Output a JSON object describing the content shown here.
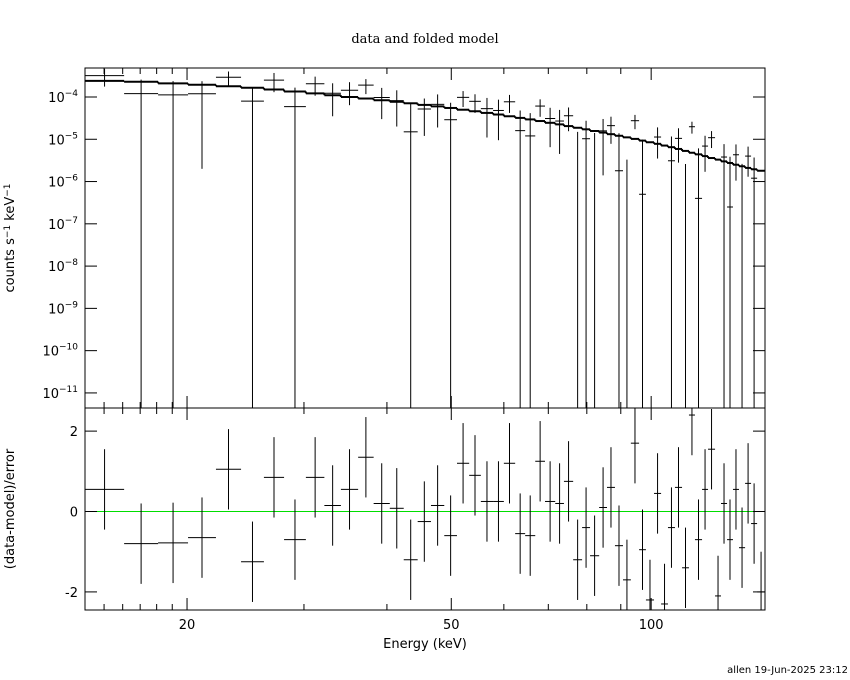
{
  "chart_data": [
    {
      "type": "spectrum",
      "title": "data and folded model",
      "ylabel": [
        "counts s",
        "−1",
        " keV",
        "−1"
      ],
      "log": true,
      "xlim": [
        14.04,
        148.4
      ],
      "ylim": [
        4.4e-12,
        0.000485
      ],
      "yticks": [
        {
          "value": 0.0001,
          "label": "10",
          "exponent": "−4"
        },
        {
          "value": 1e-05,
          "label": "10",
          "exponent": "−5"
        },
        {
          "value": 1e-06,
          "label": "10",
          "exponent": "−6"
        },
        {
          "value": 1e-07,
          "label": "10",
          "exponent": "−7"
        },
        {
          "value": 1e-08,
          "label": "10",
          "exponent": "−8"
        },
        {
          "value": 1e-09,
          "label": "10",
          "exponent": "−9"
        },
        {
          "value": 1e-10,
          "label": "10",
          "exponent": "−10"
        },
        {
          "value": 1e-11,
          "label": "10",
          "exponent": "−11"
        }
      ],
      "bins": [
        14.04,
        16.08,
        18.09,
        20.07,
        22.11,
        24.12,
        26.11,
        28.0,
        30.2,
        32.2,
        34.1,
        36.2,
        38.2,
        40.4,
        42.4,
        44.5,
        46.6,
        48.8,
        51.0,
        53.2,
        55.4,
        57.8,
        60.0,
        62.4,
        64.6,
        66.9,
        69.2,
        71.7,
        73.9,
        76.3,
        78.7,
        80.9,
        83.5,
        85.8,
        88.2,
        90.7,
        93.2,
        95.9,
        98.2,
        101.0,
        103.5,
        106.0,
        108.6,
        111.3,
        114.0,
        116.4,
        119.3,
        121.8,
        124.8,
        127.4,
        130.1,
        132.8,
        135.6,
        138.5,
        141.4,
        144.4,
        148.4
      ],
      "data": {
        "color": "#000000",
        "values": [
          0.00032,
          0.00012,
          0.000112,
          0.000119,
          0.000293,
          8e-05,
          0.00025,
          5.9e-05,
          0.000205,
          0.000123,
          0.000144,
          0.000191,
          9.7e-05,
          8.2e-05,
          1.5e-05,
          5.2e-05,
          6.7e-05,
          2.9e-05,
          9.8e-05,
          7.9e-05,
          5.3e-05,
          4.8e-05,
          7.7e-05,
          1.6e-05,
          1.2e-05,
          6.1e-05,
          3.1e-05,
          2.7e-05,
          3.6e-05,
          -3.7e-06,
          1.03e-05,
          -1.6e-06,
          1.58e-05,
          2.1e-05,
          1.8e-06,
          -7.8e-06,
          2.75e-05,
          5e-07,
          -1e-05,
          1.13e-05,
          -1.41e-05,
          3.1e-06,
          1.05e-05,
          -4.3e-06,
          1.98e-05,
          4e-07,
          6.9e-06,
          1.09e-05,
          -5.7e-06,
          3.8e-06,
          2.5e-07,
          4.3e-06,
          -3.9e-07,
          4e-06,
          1.2e-06,
          -2.9e-06
        ],
        "errors": [
          0.000144,
          0.000138,
          0.000126,
          0.000117,
          0.000108,
          9e-05,
          0.00012,
          0.000108,
          9.8e-05,
          8.8e-05,
          8e-05,
          7.4e-05,
          6.7e-05,
          6.2e-05,
          5.7e-05,
          4e-05,
          4.8e-05,
          4.4e-05,
          4e-05,
          3.7e-05,
          4.2e-05,
          3.85e-05,
          3.5e-05,
          3.2e-05,
          2.95e-05,
          2.7e-05,
          2.45e-05,
          2.25e-05,
          2.05e-05,
          1.87e-05,
          1.72e-05,
          1.57e-05,
          1.44e-05,
          1.32e-05,
          1.21e-05,
          1.11e-05,
          1.02e-05,
          9.3e-06,
          8.5e-06,
          7.8e-06,
          9.2e-06,
          8.5e-06,
          7.7e-06,
          6.9e-06,
          6.2e-06,
          5.7e-06,
          5.2e-06,
          4.7e-06,
          4.3e-06,
          3.9e-06,
          3.6e-06,
          3.25e-06,
          3e-06,
          2.7e-06,
          2.5e-06,
          2.3e-06
        ]
      },
      "model": {
        "color": "#000000",
        "values": [
          0.00024,
          0.00023,
          0.00021,
          0.000195,
          0.00018,
          0.000165,
          0.00015,
          0.000135,
          0.000122,
          0.00011,
          0.0001,
          9.2e-05,
          8.4e-05,
          7.7e-05,
          7.1e-05,
          6.5e-05,
          6e-05,
          5.5e-05,
          5e-05,
          4.6e-05,
          4.2e-05,
          3.85e-05,
          3.5e-05,
          3.2e-05,
          2.95e-05,
          2.7e-05,
          2.45e-05,
          2.25e-05,
          2.05e-05,
          1.87e-05,
          1.72e-05,
          1.57e-05,
          1.44e-05,
          1.32e-05,
          1.21e-05,
          1.11e-05,
          1.02e-05,
          9.3e-06,
          8.5e-06,
          7.8e-06,
          7.1e-06,
          6.5e-06,
          5.9e-06,
          5.3e-06,
          4.8e-06,
          4.4e-06,
          4e-06,
          3.6e-06,
          3.3e-06,
          3e-06,
          2.75e-06,
          2.5e-06,
          2.3e-06,
          2.1e-06,
          1.95e-06,
          1.8e-06
        ]
      }
    },
    {
      "type": "residual",
      "ylabel": "(data-model)/error",
      "xlabel": "Energy (keV)",
      "xticks": [
        20,
        50,
        100
      ],
      "xminor": [
        15,
        16,
        17,
        18,
        19,
        30,
        40,
        60,
        70,
        80,
        90
      ],
      "ylim": [
        -2.45,
        2.575
      ],
      "yticks": [
        -2,
        0,
        2
      ],
      "zero_line": {
        "value": 0,
        "color": "#00dd00"
      },
      "color": "#000000",
      "values": [
        0.55,
        -0.8,
        -0.78,
        -0.65,
        1.05,
        -1.25,
        0.85,
        -0.7,
        0.85,
        0.15,
        0.55,
        1.35,
        0.2,
        0.08,
        -1.2,
        -0.25,
        0.15,
        -0.6,
        1.2,
        0.9,
        0.25,
        0.25,
        1.2,
        -0.55,
        -0.6,
        1.25,
        0.25,
        0.2,
        0.75,
        -1.2,
        -0.4,
        -1.1,
        0.1,
        0.6,
        -0.85,
        -1.7,
        1.7,
        -0.95,
        -2.2,
        0.45,
        -2.3,
        -0.4,
        0.6,
        -1.4,
        2.4,
        -0.7,
        0.55,
        1.55,
        -2.1,
        0.2,
        -0.7,
        0.55,
        -0.9,
        0.7,
        -0.3,
        -2.0
      ],
      "errors": [
        1,
        1,
        1,
        1,
        1,
        1,
        1,
        1,
        1,
        1,
        1,
        1,
        1,
        1,
        1,
        1,
        1,
        1,
        1,
        1,
        1,
        1,
        1,
        1,
        1,
        1,
        1,
        1,
        1,
        1,
        1,
        1,
        1,
        1,
        1,
        1,
        1,
        1,
        1,
        1,
        1,
        1,
        1,
        1,
        1,
        1,
        1,
        1,
        1,
        1,
        1,
        1,
        1,
        1,
        1,
        1
      ]
    }
  ],
  "footer": "allen 19-Jun-2025 23:12"
}
